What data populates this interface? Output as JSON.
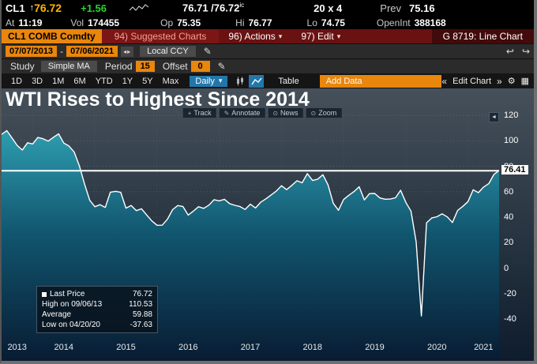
{
  "icons": {
    "up_arrow": "↑",
    "dropdown_arrow": "▾",
    "pencil": "✎",
    "back_arrow": "↩",
    "forward_arrow": "↪",
    "gear": "⚙",
    "grid": "▦",
    "collapse_left": "◄",
    "prev": "«",
    "next": "»",
    "spinners": "◂▸",
    "dash": "-",
    "tool_glyphs": [
      "+",
      "✎",
      "⊙",
      "⊙"
    ],
    "legend_marker": "■"
  },
  "quote": {
    "ticker": "CL1",
    "last": "76.72",
    "change": "+1.56",
    "bid": "76.71",
    "separator": " /",
    "ask": "76.72",
    "ask_code": "ic",
    "size": "20 x 4",
    "prev_label": "Prev",
    "prev": "75.16",
    "at_label": "At",
    "time": "11:19",
    "vol_label": "Vol",
    "vol": "174455",
    "open_label": "Op",
    "open": "75.35",
    "hi_label": "Hi",
    "hi": "76.77",
    "lo_label": "Lo",
    "lo": "74.75",
    "oi_label": "OpenInt",
    "oi": "388168"
  },
  "command_bar": {
    "security": "CL1 COMB Comdty",
    "suggested": "94) Suggested Charts",
    "actions": "96) Actions",
    "edit": "97) Edit",
    "function_label": "G 8719: Line Chart"
  },
  "toolbar": {
    "date_from": "07/07/2013",
    "date_to": "07/06/2021",
    "currency": "Local CCY",
    "study_label": "Study",
    "study_value": "Simple MA",
    "period_label": "Period",
    "period_value": "15",
    "offset_label": "Offset",
    "offset_value": "0"
  },
  "tabs": {
    "ranges": [
      "1D",
      "3D",
      "1M",
      "6M",
      "YTD",
      "1Y",
      "5Y",
      "Max"
    ],
    "frequency": "Daily",
    "table_label": "Table",
    "add_data_label": "Add Data",
    "edit_chart_label": "Edit Chart"
  },
  "chart": {
    "title": "WTI Rises to Highest Since 2014",
    "tools": [
      "Track",
      "Annotate",
      "News",
      "Zoom"
    ],
    "price_marker": "76.41",
    "legend": [
      {
        "label": "Last Price",
        "value": "76.72"
      },
      {
        "label": "High on 09/06/13",
        "value": "110.53"
      },
      {
        "label": "Average",
        "value": "59.88"
      },
      {
        "label": "Low on 04/20/20",
        "value": "-37.63"
      }
    ]
  },
  "chart_data": {
    "type": "area",
    "title": "WTI Rises to Highest Since 2014",
    "xlabel": "",
    "ylabel": "",
    "x_unit": "month",
    "x_start": "2013-07",
    "x_end": "2021-07",
    "x_tick_labels": [
      "2013",
      "2014",
      "2015",
      "2016",
      "2017",
      "2018",
      "2019",
      "2020",
      "2021"
    ],
    "y_ticks": [
      120,
      100,
      80,
      60,
      40,
      20,
      0,
      -20,
      -40
    ],
    "ylim": [
      -40,
      120
    ],
    "grid": true,
    "legend_position": "bottom-left",
    "last_price_line": 76.41,
    "series_name": "Last Price",
    "values": [
      105.0,
      108.0,
      102.3,
      96.4,
      92.7,
      98.4,
      97.5,
      102.6,
      101.6,
      99.7,
      102.7,
      105.4,
      98.2,
      95.9,
      91.2,
      80.5,
      66.2,
      53.3,
      48.2,
      49.8,
      47.6,
      59.6,
      60.3,
      59.5,
      47.1,
      49.2,
      45.1,
      46.6,
      41.7,
      37.0,
      33.6,
      33.7,
      38.3,
      45.9,
      49.1,
      48.3,
      41.6,
      44.7,
      48.2,
      46.9,
      49.4,
      53.7,
      52.8,
      54.0,
      50.6,
      49.3,
      48.3,
      46.0,
      50.2,
      47.2,
      51.7,
      54.4,
      57.4,
      60.4,
      64.7,
      61.6,
      64.9,
      68.6,
      67.0,
      74.2,
      68.8,
      69.8,
      73.3,
      65.3,
      50.9,
      45.4,
      53.8,
      57.2,
      60.1,
      63.9,
      53.5,
      58.5,
      58.6,
      55.1,
      54.1,
      54.2,
      55.2,
      61.1,
      51.6,
      44.8,
      20.5,
      -37.63,
      35.5,
      39.3,
      40.3,
      42.6,
      40.2,
      35.8,
      45.3,
      48.5,
      52.2,
      61.5,
      59.2,
      63.6,
      66.3,
      73.5,
      76.72
    ]
  }
}
